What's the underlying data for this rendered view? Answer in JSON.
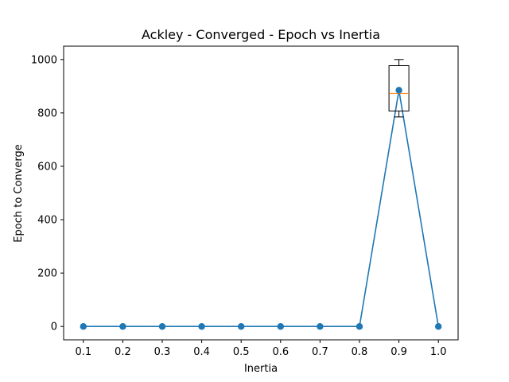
{
  "chart_data": {
    "type": "line",
    "title": "Ackley - Converged - Epoch vs Inertia",
    "xlabel": "Inertia",
    "ylabel": "Epoch to Converge",
    "xlim": [
      0.05,
      1.05
    ],
    "ylim": [
      -50,
      1050
    ],
    "x_ticks": [
      "0.1",
      "0.2",
      "0.3",
      "0.4",
      "0.5",
      "0.6",
      "0.7",
      "0.8",
      "0.9",
      "1.0"
    ],
    "y_ticks": [
      "0",
      "200",
      "400",
      "600",
      "800",
      "1000"
    ],
    "grid": false,
    "series": [
      {
        "color": "#1f77b4",
        "x": [
          0.1,
          0.2,
          0.3,
          0.4,
          0.5,
          0.6,
          0.7,
          0.8,
          0.9,
          1.0
        ],
        "y": [
          0,
          0,
          0,
          0,
          0,
          0,
          0,
          0,
          885,
          0
        ]
      }
    ],
    "boxplot": {
      "x": 0.9,
      "whisker_low": 785,
      "q1": 807,
      "median": 873,
      "q3": 977,
      "whisker_high": 1000,
      "median_color": "#ff7f0e"
    }
  }
}
